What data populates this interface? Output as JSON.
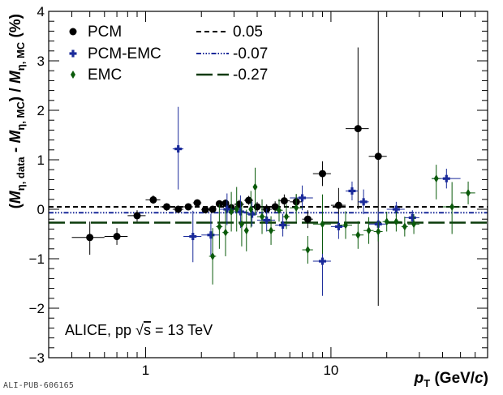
{
  "chart_data": {
    "type": "scatter",
    "x_scale": "log",
    "xlim": [
      0.3,
      70
    ],
    "ylim": [
      -3,
      4
    ],
    "x_ticks": [
      {
        "value": 1,
        "label": "1"
      },
      {
        "value": 10,
        "label": "10"
      }
    ],
    "y_ticks": [
      {
        "value": -3,
        "label": "−3"
      },
      {
        "value": -2,
        "label": "−2"
      },
      {
        "value": -1,
        "label": "−1"
      },
      {
        "value": 0,
        "label": "0"
      },
      {
        "value": 1,
        "label": "1"
      },
      {
        "value": 2,
        "label": "2"
      },
      {
        "value": 3,
        "label": "3"
      },
      {
        "value": 4,
        "label": "4"
      }
    ],
    "xlabel": {
      "main": "p",
      "sub": "T",
      "unit_open": " (GeV/",
      "unit_c": "c",
      "unit_close": ")"
    },
    "ylabel": {
      "open": "(",
      "m1": "M",
      "s1": "η, data",
      "minus": " - ",
      "m2": "M",
      "s2": "η, MC",
      "mid": ") / ",
      "m3": "M",
      "s3": "η, MC",
      "unit": " (%)"
    },
    "annotation": {
      "prefix": "ALICE, pp ",
      "sqrt": "√",
      "s": "s",
      "suffix": " = 13 TeV"
    },
    "series": [
      {
        "name": "PCM",
        "color": "#000000",
        "marker": "circle",
        "points": [
          {
            "x": 0.5,
            "y": -0.57,
            "xlo": 0.4,
            "xhi": 0.6,
            "ylo": -0.92,
            "yhi": -0.25
          },
          {
            "x": 0.7,
            "y": -0.55,
            "xlo": 0.6,
            "xhi": 0.8,
            "ylo": -0.72,
            "yhi": -0.38
          },
          {
            "x": 0.9,
            "y": -0.13,
            "xlo": 0.8,
            "xhi": 1.0,
            "ylo": -0.25,
            "yhi": -0.02
          },
          {
            "x": 1.1,
            "y": 0.19,
            "xlo": 1.0,
            "xhi": 1.2,
            "ylo": 0.11,
            "yhi": 0.28
          },
          {
            "x": 1.3,
            "y": 0.05,
            "xlo": 1.2,
            "xhi": 1.4,
            "ylo": -0.03,
            "yhi": 0.12
          },
          {
            "x": 1.5,
            "y": 0.0,
            "xlo": 1.4,
            "xhi": 1.6,
            "ylo": -0.06,
            "yhi": 0.06
          },
          {
            "x": 1.7,
            "y": 0.05,
            "xlo": 1.6,
            "xhi": 1.8,
            "ylo": -0.01,
            "yhi": 0.11
          },
          {
            "x": 1.9,
            "y": 0.13,
            "xlo": 1.8,
            "xhi": 2.0,
            "ylo": 0.07,
            "yhi": 0.19
          },
          {
            "x": 2.1,
            "y": -0.01,
            "xlo": 2.0,
            "xhi": 2.2,
            "ylo": -0.07,
            "yhi": 0.05
          },
          {
            "x": 2.3,
            "y": 0.0,
            "xlo": 2.2,
            "xhi": 2.4,
            "ylo": -0.06,
            "yhi": 0.06
          },
          {
            "x": 2.5,
            "y": 0.11,
            "xlo": 2.4,
            "xhi": 2.6,
            "ylo": 0.04,
            "yhi": 0.18
          },
          {
            "x": 2.7,
            "y": 0.12,
            "xlo": 2.6,
            "xhi": 2.8,
            "ylo": 0.04,
            "yhi": 0.2
          },
          {
            "x": 2.9,
            "y": 0.03,
            "xlo": 2.8,
            "xhi": 3.0,
            "ylo": -0.06,
            "yhi": 0.12
          },
          {
            "x": 3.2,
            "y": 0.1,
            "xlo": 3.0,
            "xhi": 3.4,
            "ylo": 0.01,
            "yhi": 0.19
          },
          {
            "x": 3.6,
            "y": 0.18,
            "xlo": 3.4,
            "xhi": 3.8,
            "ylo": 0.09,
            "yhi": 0.27
          },
          {
            "x": 4.0,
            "y": 0.05,
            "xlo": 3.8,
            "xhi": 4.2,
            "ylo": -0.05,
            "yhi": 0.15
          },
          {
            "x": 4.5,
            "y": 0.0,
            "xlo": 4.2,
            "xhi": 4.8,
            "ylo": -0.1,
            "yhi": 0.1
          },
          {
            "x": 5.0,
            "y": 0.05,
            "xlo": 4.8,
            "xhi": 5.2,
            "ylo": -0.06,
            "yhi": 0.16
          },
          {
            "x": 5.6,
            "y": 0.17,
            "xlo": 5.2,
            "xhi": 6.0,
            "ylo": 0.04,
            "yhi": 0.3
          },
          {
            "x": 6.5,
            "y": 0.15,
            "xlo": 6.0,
            "xhi": 7.0,
            "ylo": 0.0,
            "yhi": 0.3
          },
          {
            "x": 7.5,
            "y": -0.2,
            "xlo": 7.0,
            "xhi": 8.0,
            "ylo": -0.38,
            "yhi": -0.02
          },
          {
            "x": 9.0,
            "y": 0.72,
            "xlo": 8.0,
            "xhi": 10.0,
            "ylo": 0.47,
            "yhi": 0.97
          },
          {
            "x": 11.0,
            "y": 0.08,
            "xlo": 10.0,
            "xhi": 12.0,
            "ylo": -0.27,
            "yhi": 0.43
          },
          {
            "x": 14.0,
            "y": 1.63,
            "xlo": 12.0,
            "xhi": 16.0,
            "ylo": 0.0,
            "yhi": 3.27
          },
          {
            "x": 18.0,
            "y": 1.07,
            "xlo": 16.0,
            "xhi": 20.0,
            "ylo": -1.95,
            "yhi": 4.0
          }
        ]
      },
      {
        "name": "PCM-EMC",
        "color": "#1a2a9a",
        "marker": "cross",
        "points": [
          {
            "x": 1.5,
            "y": 1.22,
            "xlo": 1.4,
            "xhi": 1.6,
            "ylo": 0.4,
            "yhi": 2.07
          },
          {
            "x": 1.8,
            "y": -0.55,
            "xlo": 1.6,
            "xhi": 2.0,
            "ylo": -1.07,
            "yhi": -0.03
          },
          {
            "x": 2.25,
            "y": -0.52,
            "xlo": 2.0,
            "xhi": 2.5,
            "ylo": -0.95,
            "yhi": -0.09
          },
          {
            "x": 2.75,
            "y": 0.0,
            "xlo": 2.5,
            "xhi": 3.0,
            "ylo": -0.32,
            "yhi": 0.32
          },
          {
            "x": 3.25,
            "y": -0.05,
            "xlo": 3.0,
            "xhi": 3.5,
            "ylo": -0.38,
            "yhi": 0.28
          },
          {
            "x": 3.75,
            "y": -0.1,
            "xlo": 3.5,
            "xhi": 4.0,
            "ylo": -0.35,
            "yhi": 0.15
          },
          {
            "x": 4.5,
            "y": -0.22,
            "xlo": 4.0,
            "xhi": 5.0,
            "ylo": -0.45,
            "yhi": 0.01
          },
          {
            "x": 5.5,
            "y": -0.32,
            "xlo": 5.0,
            "xhi": 6.0,
            "ylo": -0.55,
            "yhi": -0.09
          },
          {
            "x": 7.0,
            "y": 0.23,
            "xlo": 6.0,
            "xhi": 8.0,
            "ylo": -0.02,
            "yhi": 0.48
          },
          {
            "x": 9.0,
            "y": -1.05,
            "xlo": 8.0,
            "xhi": 10.0,
            "ylo": -1.75,
            "yhi": -0.35
          },
          {
            "x": 11.0,
            "y": -0.35,
            "xlo": 10.0,
            "xhi": 12.0,
            "ylo": -0.6,
            "yhi": -0.1
          },
          {
            "x": 13.0,
            "y": 0.37,
            "xlo": 12.0,
            "xhi": 14.0,
            "ylo": 0.18,
            "yhi": 0.56
          },
          {
            "x": 15.0,
            "y": 0.15,
            "xlo": 14.0,
            "xhi": 16.0,
            "ylo": -0.1,
            "yhi": 0.4
          },
          {
            "x": 18.0,
            "y": -0.3,
            "xlo": 16.0,
            "xhi": 20.0,
            "ylo": -0.56,
            "yhi": -0.04
          },
          {
            "x": 22.5,
            "y": 0.0,
            "xlo": 20.0,
            "xhi": 25.0,
            "ylo": -0.15,
            "yhi": 0.15
          },
          {
            "x": 27.5,
            "y": -0.17,
            "xlo": 25.0,
            "xhi": 30.0,
            "ylo": -0.32,
            "yhi": -0.02
          },
          {
            "x": 42.0,
            "y": 0.62,
            "xlo": 35.0,
            "xhi": 50.0,
            "ylo": 0.42,
            "yhi": 0.82
          }
        ]
      },
      {
        "name": "EMC",
        "color": "#0a5a0a",
        "marker": "diamond",
        "points": [
          {
            "x": 2.3,
            "y": -0.95,
            "xlo": 2.2,
            "xhi": 2.4,
            "ylo": -1.52,
            "yhi": -0.38
          },
          {
            "x": 2.5,
            "y": -0.35,
            "xlo": 2.4,
            "xhi": 2.6,
            "ylo": -0.8,
            "yhi": 0.1
          },
          {
            "x": 2.7,
            "y": -0.47,
            "xlo": 2.6,
            "xhi": 2.8,
            "ylo": -0.95,
            "yhi": 0.0
          },
          {
            "x": 2.9,
            "y": -0.05,
            "xlo": 2.8,
            "xhi": 3.0,
            "ylo": -0.45,
            "yhi": 0.35
          },
          {
            "x": 3.1,
            "y": 0.0,
            "xlo": 3.0,
            "xhi": 3.2,
            "ylo": -0.45,
            "yhi": 0.45
          },
          {
            "x": 3.3,
            "y": -0.3,
            "xlo": 3.2,
            "xhi": 3.4,
            "ylo": -0.75,
            "yhi": 0.15
          },
          {
            "x": 3.5,
            "y": -0.43,
            "xlo": 3.4,
            "xhi": 3.6,
            "ylo": -0.85,
            "yhi": -0.01
          },
          {
            "x": 3.7,
            "y": 0.0,
            "xlo": 3.6,
            "xhi": 3.8,
            "ylo": -0.37,
            "yhi": 0.37
          },
          {
            "x": 3.9,
            "y": 0.45,
            "xlo": 3.8,
            "xhi": 4.0,
            "ylo": -0.12,
            "yhi": 0.84
          },
          {
            "x": 4.25,
            "y": -0.15,
            "xlo": 4.0,
            "xhi": 4.5,
            "ylo": -0.5,
            "yhi": 0.2
          },
          {
            "x": 4.75,
            "y": -0.43,
            "xlo": 4.5,
            "xhi": 5.0,
            "ylo": -0.72,
            "yhi": -0.14
          },
          {
            "x": 5.25,
            "y": -0.02,
            "xlo": 5.0,
            "xhi": 5.5,
            "ylo": -0.25,
            "yhi": 0.21
          },
          {
            "x": 5.75,
            "y": -0.15,
            "xlo": 5.5,
            "xhi": 6.0,
            "ylo": -0.4,
            "yhi": 0.1
          },
          {
            "x": 6.5,
            "y": 0.03,
            "xlo": 6.0,
            "xhi": 7.0,
            "ylo": -0.25,
            "yhi": 0.31
          },
          {
            "x": 7.5,
            "y": -0.82,
            "xlo": 7.0,
            "xhi": 8.0,
            "ylo": -1.1,
            "yhi": -0.54
          },
          {
            "x": 9.0,
            "y": -0.3,
            "xlo": 8.0,
            "xhi": 10.0,
            "ylo": -0.9,
            "yhi": 0.3
          },
          {
            "x": 12.0,
            "y": -0.32,
            "xlo": 11.0,
            "xhi": 13.0,
            "ylo": -0.6,
            "yhi": -0.04
          },
          {
            "x": 14.0,
            "y": -0.52,
            "xlo": 13.0,
            "xhi": 15.0,
            "ylo": -0.8,
            "yhi": -0.24
          },
          {
            "x": 16.0,
            "y": -0.43,
            "xlo": 15.0,
            "xhi": 17.0,
            "ylo": -0.7,
            "yhi": -0.16
          },
          {
            "x": 18.0,
            "y": -0.45,
            "xlo": 17.0,
            "xhi": 19.0,
            "ylo": -0.65,
            "yhi": -0.25
          },
          {
            "x": 20.0,
            "y": -0.25,
            "xlo": 19.0,
            "xhi": 21.0,
            "ylo": -0.45,
            "yhi": -0.05
          },
          {
            "x": 22.5,
            "y": -0.25,
            "xlo": 21.0,
            "xhi": 24.0,
            "ylo": -0.45,
            "yhi": -0.05
          },
          {
            "x": 25.0,
            "y": -0.35,
            "xlo": 24.0,
            "xhi": 26.0,
            "ylo": -0.55,
            "yhi": -0.15
          },
          {
            "x": 28.0,
            "y": -0.3,
            "xlo": 26.0,
            "xhi": 30.0,
            "ylo": -0.5,
            "yhi": -0.1
          },
          {
            "x": 37.0,
            "y": 0.62,
            "xlo": 35.0,
            "xhi": 39.0,
            "ylo": 0.2,
            "yhi": 0.9
          },
          {
            "x": 45.0,
            "y": 0.05,
            "xlo": 40.0,
            "xhi": 50.0,
            "ylo": -0.5,
            "yhi": 0.55
          },
          {
            "x": 55.0,
            "y": 0.33,
            "xlo": 50.0,
            "xhi": 60.0,
            "ylo": 0.1,
            "yhi": 0.56
          }
        ]
      }
    ],
    "lines": [
      {
        "name": "0.05",
        "value": 0.05,
        "color": "#000000",
        "dash": "6,4",
        "width": 2
      },
      {
        "name": "-0.07",
        "value": -0.07,
        "color": "#1a2a9a",
        "dash": "6,2,1.5,2,1.5,2,1.5,2",
        "width": 2
      },
      {
        "name": "-0.27",
        "value": -0.27,
        "color": "#0a3a0a",
        "dash": "20,6",
        "width": 2.5
      }
    ],
    "legend": {
      "placement": "top-left, two columns"
    }
  },
  "footer": {
    "pub_id": "ALI-PUB-606165"
  }
}
